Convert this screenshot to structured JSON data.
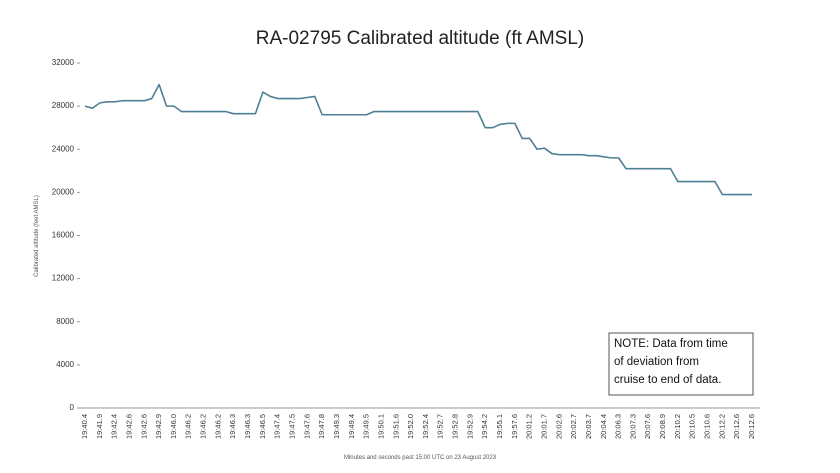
{
  "chart_data": {
    "type": "line",
    "title": "RA-02795 Calibrated altitude (ft AMSL)",
    "y_label": "Calibrated altitude (feet AMSL)",
    "x_label": "Minutes and seconds past 15:00 UTC on 23 August 2023",
    "annotation": [
      "NOTE: Data from time",
      "of deviation from",
      "cruise to end of data."
    ],
    "categories": [
      "19:40.4",
      null,
      "19:41.9",
      null,
      "19:42.4",
      null,
      "19:42.6",
      null,
      "19:42.6",
      null,
      "19:42.9",
      null,
      "19:46.0",
      null,
      "19:46.2",
      null,
      "19:46.2",
      null,
      "19:46.2",
      null,
      "19:46.3",
      null,
      "19:46.3",
      null,
      "19:46.5",
      null,
      "19:47.4",
      null,
      "19:47.5",
      null,
      "19:47.6",
      null,
      "19:47.8",
      null,
      "19:49.3",
      null,
      "19:49.4",
      null,
      "19:49.5",
      null,
      "19:50.1",
      null,
      "19:51.6",
      null,
      "19:52.0",
      null,
      "19:52.4",
      null,
      "19:52.7",
      null,
      "19:52.8",
      null,
      "19:52.9",
      null,
      "19:54.2",
      null,
      "19:55.1",
      null,
      "19:57.6",
      null,
      "20:01.2",
      null,
      "20:01.7",
      null,
      "20:02.6",
      null,
      "20:02.7",
      null,
      "20:03.7",
      null,
      "20:04.4",
      null,
      "20:06.3",
      null,
      "20:07.3",
      null,
      "20:07.6",
      null,
      "20:08.9",
      null,
      "20:10.2",
      null,
      "20:10.5",
      null,
      "20:10.6",
      null,
      "20:12.2",
      null,
      "20:12.6",
      null,
      "20:12.6"
    ],
    "series": [
      {
        "name": "Calibrated altitude",
        "color": "#4f7f95",
        "values": [
          28000,
          27800,
          28300,
          28400,
          28400,
          28500,
          28500,
          28500,
          28500,
          28700,
          30000,
          28000,
          28000,
          27500,
          27500,
          27500,
          27500,
          27500,
          27500,
          27500,
          27300,
          27300,
          27300,
          27300,
          29300,
          28900,
          28700,
          28700,
          28700,
          28700,
          28800,
          28900,
          27200,
          27200,
          27200,
          27200,
          27200,
          27200,
          27200,
          27500,
          27500,
          27500,
          27500,
          27500,
          27500,
          27500,
          27500,
          27500,
          27500,
          27500,
          27500,
          27500,
          27500,
          27500,
          26000,
          26000,
          26300,
          26400,
          26400,
          25000,
          25000,
          24000,
          24100,
          23600,
          23500,
          23500,
          23500,
          23500,
          23400,
          23400,
          23300,
          23200,
          23200,
          22200,
          22200,
          22200,
          22200,
          22200,
          22200,
          22200,
          21000,
          21000,
          21000,
          21000,
          21000,
          21000,
          19800,
          19800,
          19800,
          19800,
          19800
        ]
      }
    ],
    "ylim": [
      0,
      32000
    ],
    "yticks": [
      0,
      4000,
      8000,
      12000,
      16000,
      20000,
      24000,
      28000,
      32000
    ],
    "grid": false
  }
}
